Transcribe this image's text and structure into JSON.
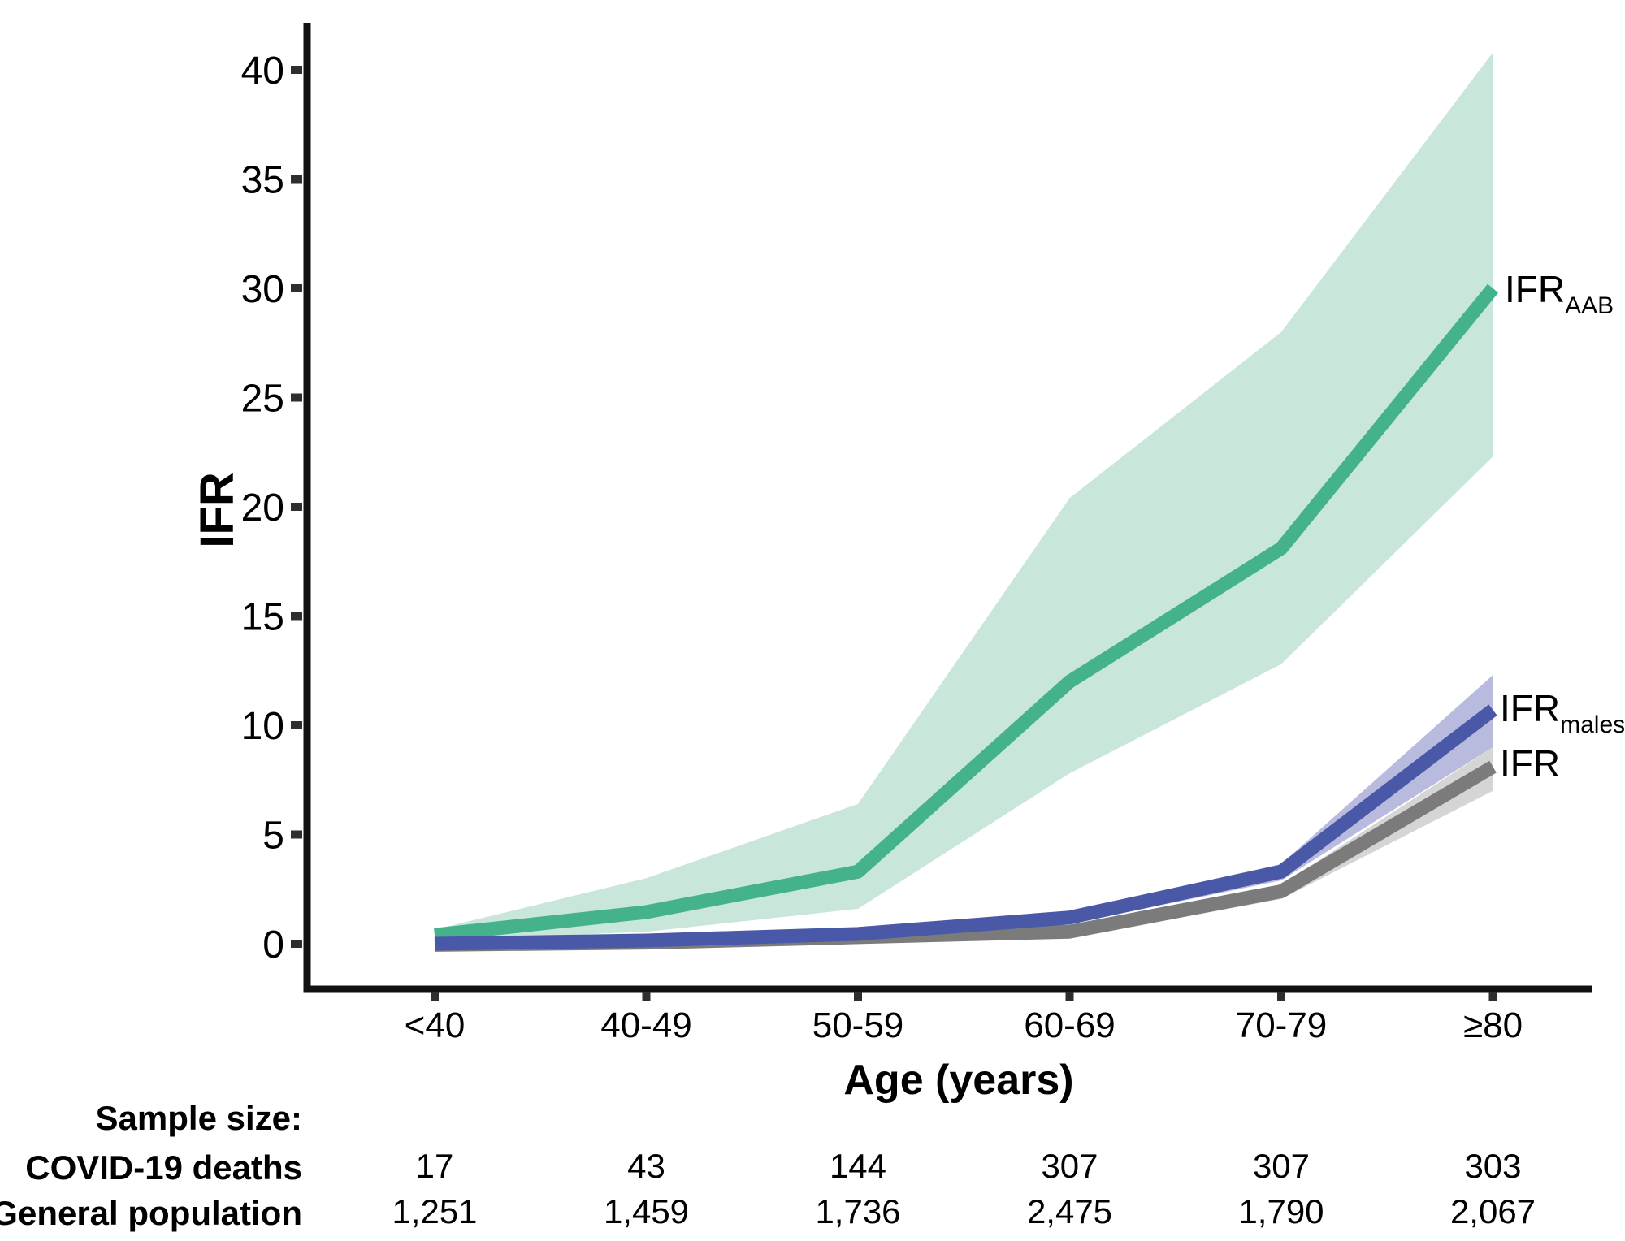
{
  "chart_data": {
    "type": "line",
    "title": "",
    "xlabel": "Age (years)",
    "ylabel": "IFR",
    "categories": [
      "<40",
      "40-49",
      "50-59",
      "60-69",
      "70-79",
      "≥80"
    ],
    "yticks": [
      "0",
      "5",
      "10",
      "15",
      "20",
      "25",
      "30",
      "35",
      "40"
    ],
    "ylim": [
      0,
      40
    ],
    "grid": false,
    "units": "percent (IFR)",
    "legend_position": "line-end-labels-right",
    "series": [
      {
        "name": "IFR_AAB",
        "label_main": "IFR",
        "label_sub": "AAB",
        "color": "#44b28b",
        "band_color": "#c9e6da",
        "values": [
          0.4,
          1.45,
          3.3,
          12.0,
          18.1,
          30.0
        ],
        "ci_low": [
          0.15,
          0.55,
          1.6,
          7.8,
          12.8,
          22.3
        ],
        "ci_high": [
          0.65,
          3.0,
          6.4,
          20.4,
          28.0,
          40.8
        ]
      },
      {
        "name": "IFR",
        "label_main": "IFR",
        "label_sub": "",
        "color": "#7b7b7b",
        "band_color": "#d5d5d5",
        "values": [
          -0.05,
          0.05,
          0.3,
          0.55,
          2.4,
          8.1
        ],
        "ci_low": [
          -0.2,
          -0.1,
          0.15,
          0.25,
          2.05,
          7.0
        ],
        "ci_high": [
          0.1,
          0.2,
          0.45,
          0.85,
          2.7,
          9.0
        ]
      },
      {
        "name": "IFR_males",
        "label_main": "IFR",
        "label_sub": "males",
        "color": "#4a58a8",
        "band_color": "#b9bbde",
        "values": [
          0.0,
          0.15,
          0.45,
          1.2,
          3.3,
          10.7
        ],
        "ci_low": [
          -0.15,
          0.0,
          0.25,
          0.9,
          2.9,
          9.0
        ],
        "ci_high": [
          0.15,
          0.3,
          0.65,
          1.5,
          3.65,
          12.3
        ]
      }
    ]
  },
  "table": {
    "title": "Sample size:",
    "rows": [
      {
        "label": "COVID-19 deaths",
        "values": [
          "17",
          "43",
          "144",
          "307",
          "307",
          "303"
        ]
      },
      {
        "label": "General population",
        "values": [
          "1,251",
          "1,459",
          "1,736",
          "2,475",
          "1,790",
          "2,067"
        ]
      }
    ]
  }
}
